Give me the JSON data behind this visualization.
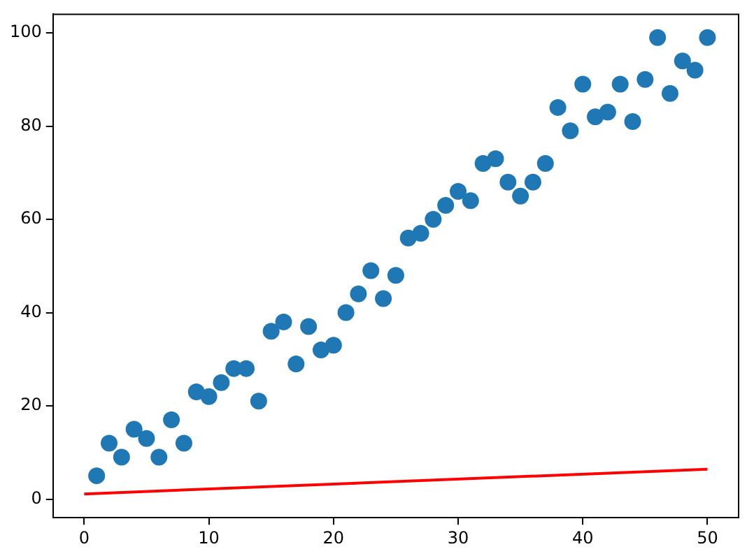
{
  "chart_data": {
    "type": "scatter",
    "x": [
      1,
      2,
      3,
      4,
      5,
      6,
      7,
      8,
      9,
      10,
      11,
      12,
      13,
      14,
      15,
      16,
      17,
      18,
      19,
      20,
      21,
      22,
      23,
      24,
      25,
      26,
      27,
      28,
      29,
      30,
      31,
      32,
      33,
      34,
      35,
      36,
      37,
      38,
      39,
      40,
      41,
      42,
      43,
      44,
      45,
      46,
      47,
      48,
      49,
      50
    ],
    "xlim": [
      -2.5,
      52.5
    ],
    "xticks": [
      0,
      10,
      20,
      30,
      40,
      50
    ],
    "ylim": [
      -4,
      104
    ],
    "yticks": [
      0,
      20,
      40,
      60,
      80,
      100
    ],
    "grid": false,
    "legend": false,
    "marker": "circle",
    "series": [
      {
        "type": "scatter",
        "color": "#1f77b4",
        "values": [
          5,
          12,
          9,
          15,
          13,
          9,
          17,
          12,
          23,
          22,
          25,
          28,
          28,
          21,
          36,
          38,
          29,
          37,
          32,
          33,
          40,
          44,
          49,
          43,
          48,
          56,
          57,
          60,
          63,
          66,
          64,
          72,
          73,
          68,
          65,
          68,
          72,
          84,
          79,
          89,
          82,
          83,
          89,
          81,
          90,
          99,
          87,
          94,
          92,
          99
        ]
      },
      {
        "type": "line",
        "color": "#ff0000",
        "x": [
          0,
          50
        ],
        "values": [
          1.1,
          6.4
        ],
        "marker": "none",
        "line_style": "solid"
      }
    ]
  }
}
